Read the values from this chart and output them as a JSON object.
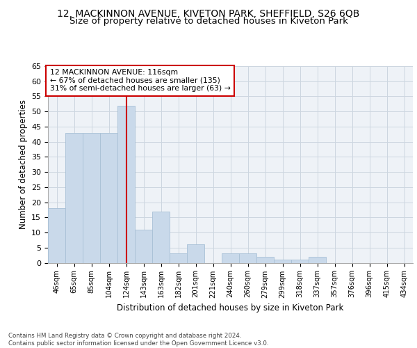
{
  "title1": "12, MACKINNON AVENUE, KIVETON PARK, SHEFFIELD, S26 6QB",
  "title2": "Size of property relative to detached houses in Kiveton Park",
  "xlabel": "Distribution of detached houses by size in Kiveton Park",
  "ylabel": "Number of detached properties",
  "bar_labels": [
    "46sqm",
    "65sqm",
    "85sqm",
    "104sqm",
    "124sqm",
    "143sqm",
    "163sqm",
    "182sqm",
    "201sqm",
    "221sqm",
    "240sqm",
    "260sqm",
    "279sqm",
    "299sqm",
    "318sqm",
    "337sqm",
    "357sqm",
    "376sqm",
    "396sqm",
    "415sqm",
    "434sqm"
  ],
  "bar_values": [
    18,
    43,
    43,
    43,
    52,
    11,
    17,
    3,
    6,
    0,
    3,
    3,
    2,
    1,
    1,
    2,
    0,
    0,
    0,
    0,
    0
  ],
  "bar_color": "#c9d9ea",
  "bar_edge_color": "#a8c0d6",
  "vline_color": "#cc0000",
  "annotation_text": "12 MACKINNON AVENUE: 116sqm\n← 67% of detached houses are smaller (135)\n31% of semi-detached houses are larger (63) →",
  "annotation_box_color": "#cc0000",
  "ylim": [
    0,
    65
  ],
  "yticks": [
    0,
    5,
    10,
    15,
    20,
    25,
    30,
    35,
    40,
    45,
    50,
    55,
    60,
    65
  ],
  "grid_color": "#ccd6e0",
  "background_color": "#eef2f7",
  "footer": "Contains HM Land Registry data © Crown copyright and database right 2024.\nContains public sector information licensed under the Open Government Licence v3.0.",
  "title1_fontsize": 10,
  "title2_fontsize": 9.5
}
